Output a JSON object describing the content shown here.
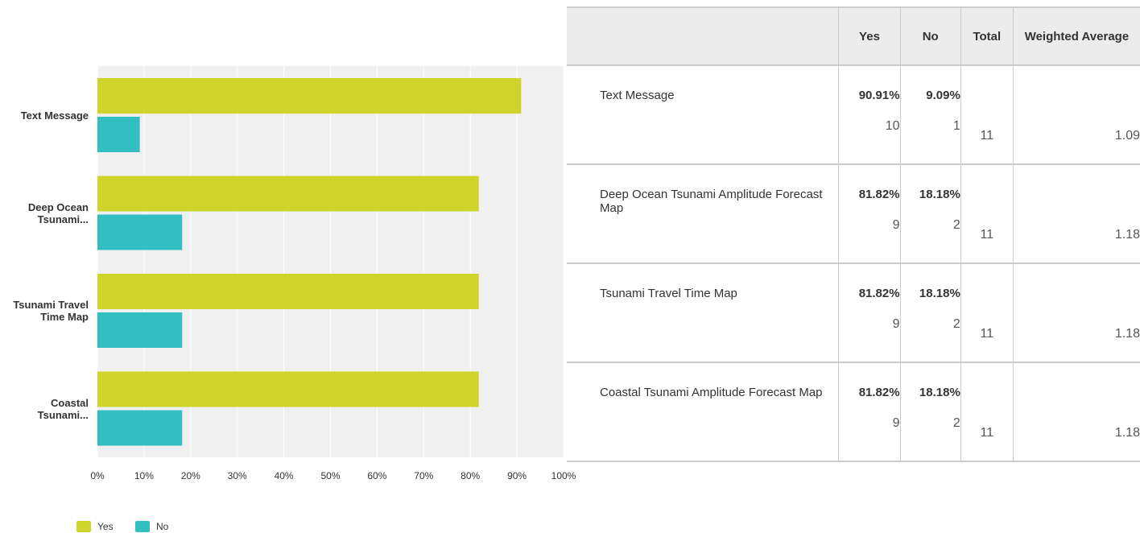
{
  "chart_data": {
    "type": "bar",
    "orientation": "horizontal",
    "categories": [
      "Text Message",
      "Deep Ocean Tsunami...",
      "Tsunami Travel Time Map",
      "Coastal Tsunami..."
    ],
    "series": [
      {
        "name": "Yes",
        "color": "#cfd42a",
        "values": [
          90.91,
          81.82,
          81.82,
          81.82
        ]
      },
      {
        "name": "No",
        "color": "#33bfc1",
        "values": [
          9.09,
          18.18,
          18.18,
          18.18
        ]
      }
    ],
    "xlim": [
      0,
      100
    ],
    "xticks": [
      {
        "value": 0,
        "label": "0%"
      },
      {
        "value": 10,
        "label": "10%"
      },
      {
        "value": 20,
        "label": "20%"
      },
      {
        "value": 30,
        "label": "30%"
      },
      {
        "value": 40,
        "label": "40%"
      },
      {
        "value": 50,
        "label": "50%"
      },
      {
        "value": 60,
        "label": "60%"
      },
      {
        "value": 70,
        "label": "70%"
      },
      {
        "value": 80,
        "label": "80%"
      },
      {
        "value": 90,
        "label": "90%"
      },
      {
        "value": 100,
        "label": "100%"
      }
    ],
    "grid": true,
    "legend": "bottom-left"
  },
  "table": {
    "header": [
      "Yes",
      "No",
      "Total",
      "Weighted Average"
    ],
    "rows": [
      {
        "label": "Text Message",
        "yes_pct": "90.91%",
        "yes_n": 10,
        "no_pct": "9.09%",
        "no_n": 1,
        "total": 11,
        "weighted_average": 1.09
      },
      {
        "label": "Deep Ocean Tsunami Amplitude Forecast Map",
        "yes_pct": "81.82%",
        "yes_n": 9,
        "no_pct": "18.18%",
        "no_n": 2,
        "total": 11,
        "weighted_average": 1.18
      },
      {
        "label": "Tsunami Travel Time Map",
        "yes_pct": "81.82%",
        "yes_n": 9,
        "no_pct": "18.18%",
        "no_n": 2,
        "total": 11,
        "weighted_average": 1.18
      },
      {
        "label": "Coastal Tsunami Amplitude Forecast Map",
        "yes_pct": "81.82%",
        "yes_n": 9,
        "no_pct": "18.18%",
        "no_n": 2,
        "total": 11,
        "weighted_average": 1.18
      }
    ]
  }
}
